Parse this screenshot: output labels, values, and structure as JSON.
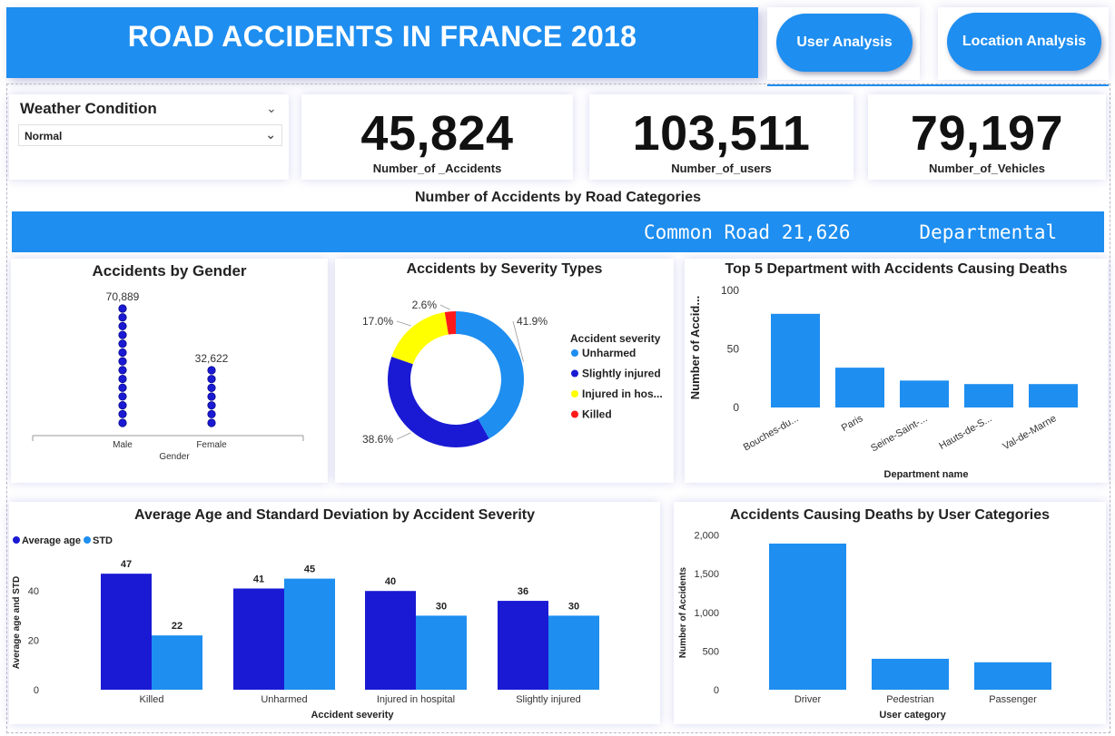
{
  "header": {
    "title": "ROAD ACCIDENTS IN FRANCE 2018",
    "nav_user": "User Analysis",
    "nav_location": "Location Analysis",
    "brand_color": "#1e8ef0"
  },
  "slicer": {
    "title": "Weather Condition",
    "selected": "Normal"
  },
  "kpis": [
    {
      "value": "45,824",
      "label": "Number_of _Accidents"
    },
    {
      "value": "103,511",
      "label": "Number_of_users"
    },
    {
      "value": "79,197",
      "label": "Number_of_Vehicles"
    }
  ],
  "road_categories": {
    "title": "Number of Accidents by Road Categories",
    "ticker_text": "Common Road 21,626      Departmental"
  },
  "chart_data": [
    {
      "id": "gender",
      "type": "scatter",
      "title": "Accidents by Gender",
      "xlabel": "Gender",
      "categories": [
        "Male",
        "Female"
      ],
      "values": [
        70889,
        32622
      ],
      "data_labels": [
        "70,889",
        "32,622"
      ],
      "dot_counts": [
        14,
        7
      ],
      "color": "#1a1ad4"
    },
    {
      "id": "severity",
      "type": "pie",
      "donut": true,
      "title": "Accidents by Severity Types",
      "legend_title": "Accident severity",
      "legend_position": "right",
      "slices": [
        {
          "label": "Unharmed",
          "value": 41.9,
          "display": "41.9%",
          "color": "#1e8ef0"
        },
        {
          "label": "Slightly injured",
          "value": 38.6,
          "display": "38.6%",
          "color": "#1a1ad4"
        },
        {
          "label": "Injured in hos...",
          "value": 17.0,
          "display": "17.0%",
          "color": "#ffff00"
        },
        {
          "label": "Killed",
          "value": 2.6,
          "display": "2.6%",
          "color": "#ff1a1a"
        }
      ]
    },
    {
      "id": "departments",
      "type": "bar",
      "title": "Top 5 Department with Accidents Causing Deaths",
      "xlabel": "Department name",
      "ylabel": "Number of Accid...",
      "categories": [
        "Bouches-du...",
        "Paris",
        "Seine-Saint-...",
        "Hauts-de-S...",
        "Val-de-Marne"
      ],
      "values": [
        80,
        34,
        23,
        20,
        20
      ],
      "ylim": [
        0,
        100
      ],
      "yticks": [
        "100",
        "50",
        "0"
      ],
      "color": "#1e8ef0"
    },
    {
      "id": "age",
      "type": "bar",
      "title": "Average Age and Standard Deviation by Accident Severity",
      "xlabel": "Accident severity",
      "ylabel": "Average age and STD",
      "categories": [
        "Killed",
        "Unharmed",
        "Injured in hospital",
        "Slightly injured"
      ],
      "series": [
        {
          "name": "Average age",
          "values": [
            47,
            41,
            40,
            36
          ],
          "color": "#1a1ad4"
        },
        {
          "name": "STD",
          "values": [
            22,
            45,
            30,
            30
          ],
          "color": "#1e8ef0"
        }
      ],
      "ylim": [
        0,
        55
      ],
      "yticks": [
        "0",
        "20",
        "40"
      ],
      "legend_position": "top-left"
    },
    {
      "id": "user_categories",
      "type": "bar",
      "title": "Accidents Causing Deaths by User Categories",
      "xlabel": "User category",
      "ylabel": "Number of Accidents",
      "categories": [
        "Driver",
        "Pedestrian",
        "Passenger"
      ],
      "values": [
        1890,
        400,
        355
      ],
      "ylim": [
        0,
        2100
      ],
      "yticks": [
        "0",
        "500",
        "1,000",
        "1,500",
        "2,000"
      ],
      "color": "#1e8ef0"
    }
  ]
}
